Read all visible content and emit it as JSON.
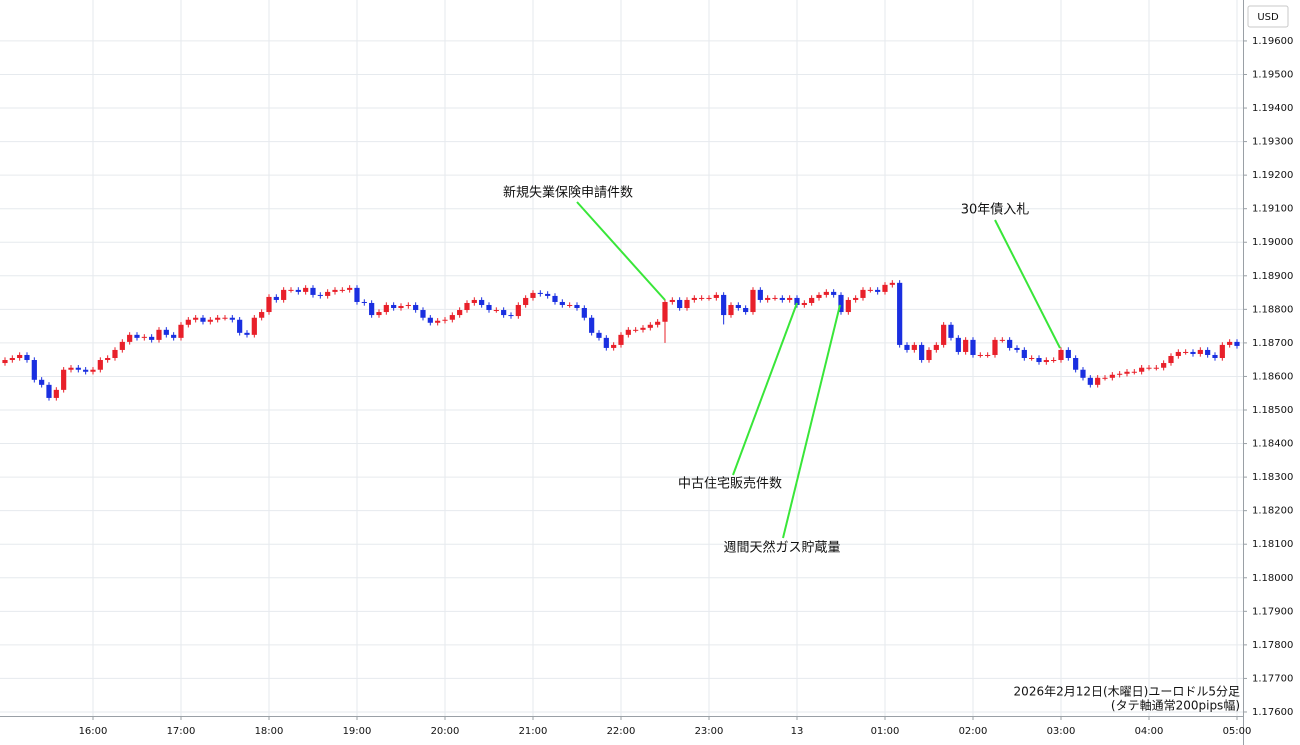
{
  "chart_data": {
    "type": "candlestick",
    "ylabel": "USD",
    "caption": [
      "2026年2月12日(木曜日)ユーロドル5分足",
      "(タテ軸通常200pips幅)"
    ],
    "annotations": [
      "新規失業保険申請件数",
      "中古住宅販売件数",
      "週間天然ガス貯蔵量",
      "30年債入札"
    ],
    "up_color": "#e8202a",
    "down_color": "#1a2fe0",
    "grid": true,
    "xlim": [
      -0.68,
      168.82
    ],
    "xticks": [
      {
        "value": 12,
        "label": "16:00"
      },
      {
        "value": 24,
        "label": "17:00"
      },
      {
        "value": 36,
        "label": "18:00"
      },
      {
        "value": 48,
        "label": "19:00"
      },
      {
        "value": 60,
        "label": "20:00"
      },
      {
        "value": 72,
        "label": "21:00"
      },
      {
        "value": 84,
        "label": "22:00"
      },
      {
        "value": 96,
        "label": "23:00"
      },
      {
        "value": 108,
        "label": "13"
      },
      {
        "value": 120,
        "label": "01:00"
      },
      {
        "value": 132,
        "label": "02:00"
      },
      {
        "value": 144,
        "label": "03:00"
      },
      {
        "value": 156,
        "label": "04:00"
      },
      {
        "value": 168,
        "label": "05:00"
      }
    ],
    "ylim": [
      1.17588,
      1.19722
    ],
    "yticks": [
      {
        "value": 1.176,
        "label": "1.17600"
      },
      {
        "value": 1.177,
        "label": "1.17700"
      },
      {
        "value": 1.178,
        "label": "1.17800"
      },
      {
        "value": 1.179,
        "label": "1.17900"
      },
      {
        "value": 1.18,
        "label": "1.18000"
      },
      {
        "value": 1.181,
        "label": "1.18100"
      },
      {
        "value": 1.182,
        "label": "1.18200"
      },
      {
        "value": 1.183,
        "label": "1.18300"
      },
      {
        "value": 1.184,
        "label": "1.18400"
      },
      {
        "value": 1.185,
        "label": "1.18500"
      },
      {
        "value": 1.186,
        "label": "1.18600"
      },
      {
        "value": 1.187,
        "label": "1.18700"
      },
      {
        "value": 1.188,
        "label": "1.18800"
      },
      {
        "value": 1.189,
        "label": "1.18900"
      },
      {
        "value": 1.19,
        "label": "1.19000"
      },
      {
        "value": 1.191,
        "label": "1.19100"
      },
      {
        "value": 1.192,
        "label": "1.19200"
      },
      {
        "value": 1.193,
        "label": "1.19300"
      },
      {
        "value": 1.194,
        "label": "1.19400"
      },
      {
        "value": 1.195,
        "label": "1.19500"
      },
      {
        "value": 1.196,
        "label": "1.19600"
      }
    ],
    "open": [
      1.1864,
      1.18649,
      1.18655,
      1.18664,
      1.18649,
      1.1859,
      1.18575,
      1.18536,
      1.1856,
      1.1862,
      1.18626,
      1.1862,
      1.18614,
      1.1862,
      1.18649,
      1.18655,
      1.18679,
      1.18703,
      1.18724,
      1.18715,
      1.18718,
      1.18709,
      1.18739,
      1.18724,
      1.18715,
      1.18754,
      1.18769,
      1.18775,
      1.18763,
      1.18769,
      1.18775,
      1.18775,
      1.18769,
      1.1873,
      1.18724,
      1.18775,
      1.18792,
      1.18837,
      1.18828,
      1.18858,
      1.18858,
      1.18852,
      1.18864,
      1.18843,
      1.1884,
      1.18852,
      1.18858,
      1.18858,
      1.18864,
      1.18822,
      1.18819,
      1.18783,
      1.18792,
      1.18813,
      1.18804,
      1.1881,
      1.18813,
      1.18798,
      1.18775,
      1.1876,
      1.18766,
      1.18769,
      1.18783,
      1.18798,
      1.18819,
      1.18828,
      1.18813,
      1.18798,
      1.18798,
      1.18783,
      1.1878,
      1.18813,
      1.18834,
      1.18849,
      1.18846,
      1.1884,
      1.18822,
      1.18813,
      1.18813,
      1.18804,
      1.18775,
      1.1873,
      1.18715,
      1.18685,
      1.18694,
      1.18724,
      1.18739,
      1.18739,
      1.18745,
      1.18754,
      1.18763,
      1.18822,
      1.18828,
      1.18804,
      1.18828,
      1.18834,
      1.18834,
      1.18834,
      1.18843,
      1.18783,
      1.18813,
      1.18804,
      1.18792,
      1.18858,
      1.18828,
      1.18834,
      1.18834,
      1.18828,
      1.18834,
      1.18813,
      1.18819,
      1.18834,
      1.18843,
      1.18852,
      1.18843,
      1.18792,
      1.18828,
      1.18834,
      1.18858,
      1.18858,
      1.18852,
      1.18873,
      1.18879,
      1.18694,
      1.18679,
      1.18694,
      1.18649,
      1.18679,
      1.18694,
      1.18754,
      1.18715,
      1.18673,
      1.18709,
      1.18664,
      1.18664,
      1.18664,
      1.18709,
      1.18709,
      1.18685,
      1.18679,
      1.18655,
      1.18655,
      1.18643,
      1.18649,
      1.18649,
      1.18679,
      1.18655,
      1.1862,
      1.18596,
      1.18575,
      1.18596,
      1.18596,
      1.18605,
      1.18608,
      1.18614,
      1.18614,
      1.18626,
      1.18626,
      1.18626,
      1.1864,
      1.18661,
      1.18673,
      1.18673,
      1.18667,
      1.18679,
      1.18664,
      1.18655,
      1.18694,
      1.18703
    ],
    "high": [
      1.18657,
      1.18663,
      1.18672,
      1.18672,
      1.18657,
      1.18598,
      1.18583,
      1.18568,
      1.18628,
      1.18634,
      1.18634,
      1.18628,
      1.18628,
      1.18657,
      1.18663,
      1.18687,
      1.18711,
      1.18732,
      1.18732,
      1.18726,
      1.18726,
      1.18747,
      1.18747,
      1.18732,
      1.18762,
      1.18777,
      1.18783,
      1.18783,
      1.18777,
      1.18783,
      1.18783,
      1.18783,
      1.18777,
      1.18738,
      1.18783,
      1.188,
      1.18845,
      1.18845,
      1.18866,
      1.18866,
      1.18866,
      1.18872,
      1.18872,
      1.18851,
      1.1886,
      1.18866,
      1.18866,
      1.18872,
      1.18872,
      1.1883,
      1.18827,
      1.188,
      1.18821,
      1.18821,
      1.18818,
      1.18821,
      1.18821,
      1.18806,
      1.18783,
      1.18774,
      1.18777,
      1.18791,
      1.18806,
      1.18827,
      1.18836,
      1.18836,
      1.18821,
      1.18806,
      1.18806,
      1.18791,
      1.18821,
      1.18842,
      1.18857,
      1.18857,
      1.18854,
      1.18848,
      1.1883,
      1.18821,
      1.18821,
      1.18812,
      1.18783,
      1.18738,
      1.18723,
      1.18702,
      1.18732,
      1.18747,
      1.18747,
      1.18753,
      1.18762,
      1.18771,
      1.1883,
      1.18836,
      1.18836,
      1.18836,
      1.18842,
      1.18842,
      1.18842,
      1.18851,
      1.18851,
      1.18821,
      1.18821,
      1.18812,
      1.18866,
      1.18866,
      1.18842,
      1.18842,
      1.18842,
      1.18842,
      1.18842,
      1.18827,
      1.18842,
      1.18851,
      1.1886,
      1.1886,
      1.18851,
      1.18836,
      1.18842,
      1.18866,
      1.18866,
      1.18866,
      1.18881,
      1.18887,
      1.18887,
      1.18702,
      1.18702,
      1.18702,
      1.18687,
      1.18702,
      1.18762,
      1.18762,
      1.18723,
      1.18717,
      1.18717,
      1.18672,
      1.18672,
      1.18717,
      1.18717,
      1.18717,
      1.18693,
      1.18687,
      1.18663,
      1.18663,
      1.18657,
      1.18657,
      1.18687,
      1.18687,
      1.18663,
      1.18628,
      1.18604,
      1.18604,
      1.18604,
      1.18613,
      1.18616,
      1.18622,
      1.18622,
      1.18634,
      1.18634,
      1.18634,
      1.18648,
      1.18669,
      1.18681,
      1.18681,
      1.18681,
      1.18687,
      1.18687,
      1.18672,
      1.18702,
      1.18711,
      1.18711
    ],
    "low": [
      1.18632,
      1.18641,
      1.18647,
      1.18641,
      1.18582,
      1.18567,
      1.18528,
      1.18528,
      1.18552,
      1.18612,
      1.18612,
      1.18606,
      1.18606,
      1.18612,
      1.18641,
      1.18647,
      1.18671,
      1.18695,
      1.18707,
      1.18707,
      1.18701,
      1.18701,
      1.18716,
      1.18707,
      1.18707,
      1.18746,
      1.18761,
      1.18755,
      1.18755,
      1.18761,
      1.18767,
      1.18761,
      1.18722,
      1.18716,
      1.18716,
      1.18767,
      1.18784,
      1.1882,
      1.1882,
      1.1885,
      1.18844,
      1.18844,
      1.18835,
      1.18832,
      1.18832,
      1.18844,
      1.1885,
      1.1885,
      1.18814,
      1.18811,
      1.18775,
      1.18775,
      1.18784,
      1.18796,
      1.18796,
      1.18802,
      1.1879,
      1.18767,
      1.18752,
      1.18752,
      1.18758,
      1.18761,
      1.18775,
      1.1879,
      1.18811,
      1.18805,
      1.1879,
      1.1879,
      1.18775,
      1.18772,
      1.18772,
      1.18805,
      1.18826,
      1.18838,
      1.18832,
      1.18814,
      1.18805,
      1.18805,
      1.18796,
      1.18767,
      1.18722,
      1.18707,
      1.18677,
      1.18677,
      1.18686,
      1.18716,
      1.18731,
      1.18731,
      1.18737,
      1.18746,
      1.187,
      1.18814,
      1.18796,
      1.18796,
      1.1882,
      1.18826,
      1.18826,
      1.18826,
      1.18755,
      1.18775,
      1.18796,
      1.18784,
      1.18784,
      1.1882,
      1.1882,
      1.18826,
      1.1882,
      1.1882,
      1.18805,
      1.18805,
      1.18811,
      1.18826,
      1.18835,
      1.18835,
      1.18784,
      1.18784,
      1.1882,
      1.18826,
      1.1885,
      1.18844,
      1.18844,
      1.18865,
      1.18686,
      1.18671,
      1.18671,
      1.18641,
      1.18641,
      1.18671,
      1.18686,
      1.18707,
      1.18665,
      1.18665,
      1.18656,
      1.18656,
      1.18656,
      1.18656,
      1.18701,
      1.18677,
      1.18671,
      1.18647,
      1.18647,
      1.18635,
      1.18635,
      1.18641,
      1.18641,
      1.18647,
      1.18612,
      1.18588,
      1.18567,
      1.18567,
      1.18588,
      1.18588,
      1.18597,
      1.186,
      1.18606,
      1.18606,
      1.18618,
      1.18618,
      1.18618,
      1.18632,
      1.18653,
      1.18665,
      1.18659,
      1.18659,
      1.18656,
      1.18647,
      1.18647,
      1.18686,
      1.18683
    ],
    "close": [
      1.18649,
      1.18655,
      1.18664,
      1.18649,
      1.1859,
      1.18575,
      1.18536,
      1.1856,
      1.1862,
      1.18626,
      1.1862,
      1.18614,
      1.1862,
      1.18649,
      1.18655,
      1.18679,
      1.18703,
      1.18724,
      1.18715,
      1.18718,
      1.18709,
      1.18739,
      1.18724,
      1.18715,
      1.18754,
      1.18769,
      1.18775,
      1.18763,
      1.18769,
      1.18775,
      1.18775,
      1.18769,
      1.1873,
      1.18724,
      1.18775,
      1.18792,
      1.18837,
      1.18828,
      1.18858,
      1.18858,
      1.18852,
      1.18864,
      1.18843,
      1.1884,
      1.18852,
      1.18858,
      1.18858,
      1.18864,
      1.18822,
      1.18819,
      1.18783,
      1.18792,
      1.18813,
      1.18804,
      1.1881,
      1.18813,
      1.18798,
      1.18775,
      1.1876,
      1.18766,
      1.18769,
      1.18783,
      1.18798,
      1.18819,
      1.18828,
      1.18813,
      1.18798,
      1.18798,
      1.18783,
      1.1878,
      1.18813,
      1.18834,
      1.18849,
      1.18846,
      1.1884,
      1.18822,
      1.18813,
      1.18813,
      1.18804,
      1.18775,
      1.1873,
      1.18715,
      1.18685,
      1.18694,
      1.18724,
      1.18739,
      1.18739,
      1.18745,
      1.18754,
      1.18763,
      1.18822,
      1.18828,
      1.18804,
      1.18828,
      1.18834,
      1.18834,
      1.18834,
      1.18843,
      1.18783,
      1.18813,
      1.18804,
      1.18792,
      1.18858,
      1.18828,
      1.18834,
      1.18834,
      1.18828,
      1.18834,
      1.18813,
      1.18819,
      1.18834,
      1.18843,
      1.18852,
      1.18843,
      1.18792,
      1.18828,
      1.18834,
      1.18858,
      1.18858,
      1.18852,
      1.18873,
      1.18879,
      1.18694,
      1.18679,
      1.18694,
      1.18649,
      1.18679,
      1.18694,
      1.18754,
      1.18715,
      1.18673,
      1.18709,
      1.18664,
      1.18664,
      1.18664,
      1.18709,
      1.18709,
      1.18685,
      1.18679,
      1.18655,
      1.18655,
      1.18643,
      1.18649,
      1.18649,
      1.18679,
      1.18655,
      1.1862,
      1.18596,
      1.18575,
      1.18596,
      1.18596,
      1.18605,
      1.18608,
      1.18614,
      1.18614,
      1.18626,
      1.18626,
      1.18626,
      1.1864,
      1.18661,
      1.18673,
      1.18673,
      1.18667,
      1.18679,
      1.18664,
      1.18655,
      1.18694,
      1.18703,
      1.18691
    ]
  }
}
